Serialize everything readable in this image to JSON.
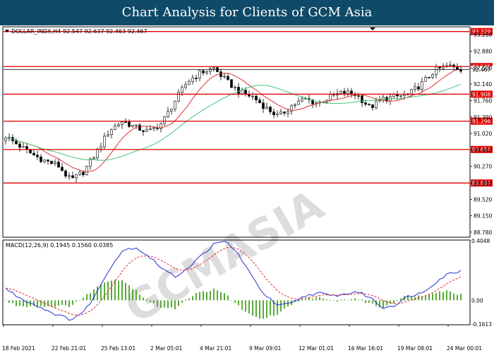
{
  "header": {
    "title": "Chart Analysis for Clients of GCM Asia"
  },
  "colors": {
    "title_bg": "#0f4a68",
    "level_line": "#e00000",
    "ma_fast": "#e03030",
    "ma_slow": "#40c878",
    "macd_line": "#2030d0",
    "signal_line": "#e03030",
    "histogram": "#5aaa3a"
  },
  "watermark": {
    "brand": "GCMASIA"
  },
  "chart_data": [
    {
      "type": "candlestick",
      "symbol_label": "DOLLAR_INDX,H4",
      "ohlc_label": "92.547 92.637 92.463 92.467",
      "ylim": [
        88.68,
        93.42
      ],
      "y_ticks": [
        "93.260",
        "92.880",
        "92.500",
        "92.140",
        "91.760",
        "91.390",
        "91.020",
        "90.640",
        "90.270",
        "89.890",
        "89.520",
        "89.150",
        "88.780"
      ],
      "x_labels": [
        "18 Feb 2021",
        "22 Feb 21:01",
        "25 Feb 13:01",
        "2 Mar 05:01",
        "4 Mar 21:01",
        "9 Mar 09:01",
        "12 Mar 01:01",
        "16 Mar 16:01",
        "19 Mar 08:01",
        "24 Mar 00:01"
      ],
      "price_anchors": [
        90.95,
        90.75,
        90.55,
        90.4,
        90.3,
        89.95,
        90.15,
        90.6,
        91.1,
        91.3,
        91.15,
        91.05,
        91.25,
        91.75,
        92.2,
        92.4,
        92.5,
        92.2,
        91.95,
        91.85,
        91.6,
        91.4,
        91.65,
        91.8,
        91.7,
        91.85,
        91.95,
        91.9,
        91.6,
        91.8,
        91.85,
        91.9,
        92.15,
        92.45,
        92.55,
        92.47
      ],
      "levels": [
        {
          "label": "93.329",
          "value": 93.329
        },
        {
          "label": "92.535",
          "value": 92.535
        },
        {
          "label": "91.908",
          "value": 91.908
        },
        {
          "label": "91.296",
          "value": 91.296
        },
        {
          "label": "90.654",
          "value": 90.654
        },
        {
          "label": "89.894",
          "value": 89.894
        }
      ],
      "current_price": {
        "label": "92.467",
        "value": 92.467
      }
    },
    {
      "type": "histogram_line",
      "label": "MACD(12,26,9) 0.1945 0.1560 0.0385",
      "ylim": [
        -0.1613,
        0.4048
      ],
      "y_ticks": [
        "0.4048",
        "0.00",
        "-0.1613"
      ],
      "macd_anchors": [
        0.08,
        0.02,
        -0.02,
        -0.06,
        -0.1,
        -0.13,
        -0.08,
        0.05,
        0.22,
        0.34,
        0.36,
        0.3,
        0.22,
        0.16,
        0.22,
        0.3,
        0.38,
        0.4,
        0.3,
        0.15,
        0.03,
        -0.04,
        -0.02,
        0.03,
        0.05,
        0.03,
        0.04,
        0.06,
        0.02,
        -0.05,
        -0.03,
        0.03,
        0.05,
        0.12,
        0.18,
        0.2
      ]
    }
  ]
}
